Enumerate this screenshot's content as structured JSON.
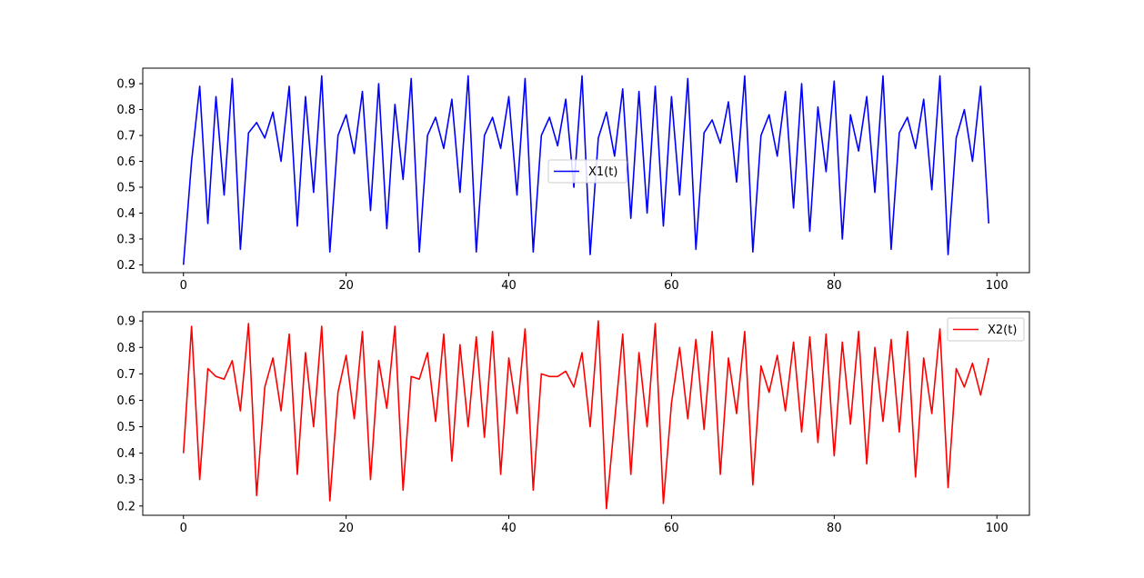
{
  "chart_data": [
    {
      "type": "line",
      "title": "",
      "xlabel": "",
      "ylabel": "",
      "xlim": [
        -5,
        104
      ],
      "ylim": [
        0.17,
        0.96
      ],
      "xticks": [
        0,
        20,
        40,
        60,
        80,
        100
      ],
      "yticks": [
        0.2,
        0.3,
        0.4,
        0.5,
        0.6,
        0.7,
        0.8,
        0.9
      ],
      "grid": false,
      "legend_position": "center",
      "series": [
        {
          "name": "X1(t)",
          "color": "#0000ff",
          "x": [
            0,
            1,
            2,
            3,
            4,
            5,
            6,
            7,
            8,
            9,
            10,
            11,
            12,
            13,
            14,
            15,
            16,
            17,
            18,
            19,
            20,
            21,
            22,
            23,
            24,
            25,
            26,
            27,
            28,
            29,
            30,
            31,
            32,
            33,
            34,
            35,
            36,
            37,
            38,
            39,
            40,
            41,
            42,
            43,
            44,
            45,
            46,
            47,
            48,
            49,
            50,
            51,
            52,
            53,
            54,
            55,
            56,
            57,
            58,
            59,
            60,
            61,
            62,
            63,
            64,
            65,
            66,
            67,
            68,
            69,
            70,
            71,
            72,
            73,
            74,
            75,
            76,
            77,
            78,
            79,
            80,
            81,
            82,
            83,
            84,
            85,
            86,
            87,
            88,
            89,
            90,
            91,
            92,
            93,
            94,
            95,
            96,
            97,
            98,
            99
          ],
          "values": [
            0.2,
            0.6,
            0.89,
            0.36,
            0.85,
            0.47,
            0.92,
            0.26,
            0.71,
            0.75,
            0.69,
            0.79,
            0.6,
            0.89,
            0.35,
            0.85,
            0.48,
            0.93,
            0.25,
            0.7,
            0.78,
            0.63,
            0.87,
            0.41,
            0.9,
            0.34,
            0.82,
            0.53,
            0.92,
            0.25,
            0.7,
            0.77,
            0.65,
            0.84,
            0.48,
            0.93,
            0.25,
            0.7,
            0.77,
            0.65,
            0.85,
            0.47,
            0.92,
            0.25,
            0.7,
            0.77,
            0.66,
            0.84,
            0.5,
            0.93,
            0.24,
            0.69,
            0.79,
            0.62,
            0.88,
            0.38,
            0.87,
            0.4,
            0.89,
            0.35,
            0.85,
            0.47,
            0.92,
            0.26,
            0.71,
            0.76,
            0.67,
            0.83,
            0.52,
            0.93,
            0.25,
            0.7,
            0.78,
            0.62,
            0.87,
            0.42,
            0.9,
            0.33,
            0.81,
            0.56,
            0.91,
            0.3,
            0.78,
            0.64,
            0.85,
            0.48,
            0.93,
            0.26,
            0.71,
            0.77,
            0.65,
            0.84,
            0.49,
            0.93,
            0.24,
            0.69,
            0.8,
            0.6,
            0.89,
            0.36
          ]
        }
      ]
    },
    {
      "type": "line",
      "title": "",
      "xlabel": "",
      "ylabel": "",
      "xlim": [
        -5,
        104
      ],
      "ylim": [
        0.165,
        0.935
      ],
      "xticks": [
        0,
        20,
        40,
        60,
        80,
        100
      ],
      "yticks": [
        0.2,
        0.3,
        0.4,
        0.5,
        0.6,
        0.7,
        0.8,
        0.9
      ],
      "grid": false,
      "legend_position": "upper right",
      "series": [
        {
          "name": "X2(t)",
          "color": "#ff0000",
          "x": [
            0,
            1,
            2,
            3,
            4,
            5,
            6,
            7,
            8,
            9,
            10,
            11,
            12,
            13,
            14,
            15,
            16,
            17,
            18,
            19,
            20,
            21,
            22,
            23,
            24,
            25,
            26,
            27,
            28,
            29,
            30,
            31,
            32,
            33,
            34,
            35,
            36,
            37,
            38,
            39,
            40,
            41,
            42,
            43,
            44,
            45,
            46,
            47,
            48,
            49,
            50,
            51,
            52,
            53,
            54,
            55,
            56,
            57,
            58,
            59,
            60,
            61,
            62,
            63,
            64,
            65,
            66,
            67,
            68,
            69,
            70,
            71,
            72,
            73,
            74,
            75,
            76,
            77,
            78,
            79,
            80,
            81,
            82,
            83,
            84,
            85,
            86,
            87,
            88,
            89,
            90,
            91,
            92,
            93,
            94,
            95,
            96,
            97,
            98,
            99
          ],
          "values": [
            0.4,
            0.88,
            0.3,
            0.72,
            0.69,
            0.68,
            0.75,
            0.56,
            0.89,
            0.24,
            0.65,
            0.76,
            0.56,
            0.85,
            0.32,
            0.78,
            0.5,
            0.88,
            0.22,
            0.63,
            0.77,
            0.53,
            0.86,
            0.3,
            0.75,
            0.57,
            0.88,
            0.26,
            0.69,
            0.68,
            0.78,
            0.52,
            0.85,
            0.37,
            0.81,
            0.5,
            0.84,
            0.46,
            0.86,
            0.32,
            0.76,
            0.55,
            0.87,
            0.26,
            0.7,
            0.69,
            0.69,
            0.71,
            0.65,
            0.78,
            0.5,
            0.9,
            0.19,
            0.52,
            0.85,
            0.32,
            0.78,
            0.5,
            0.89,
            0.21,
            0.59,
            0.8,
            0.53,
            0.83,
            0.49,
            0.86,
            0.32,
            0.76,
            0.55,
            0.86,
            0.28,
            0.73,
            0.63,
            0.77,
            0.56,
            0.82,
            0.48,
            0.84,
            0.44,
            0.85,
            0.39,
            0.82,
            0.51,
            0.86,
            0.36,
            0.8,
            0.52,
            0.83,
            0.48,
            0.86,
            0.31,
            0.76,
            0.55,
            0.87,
            0.27,
            0.72,
            0.65,
            0.74,
            0.62,
            0.76
          ]
        }
      ]
    }
  ]
}
